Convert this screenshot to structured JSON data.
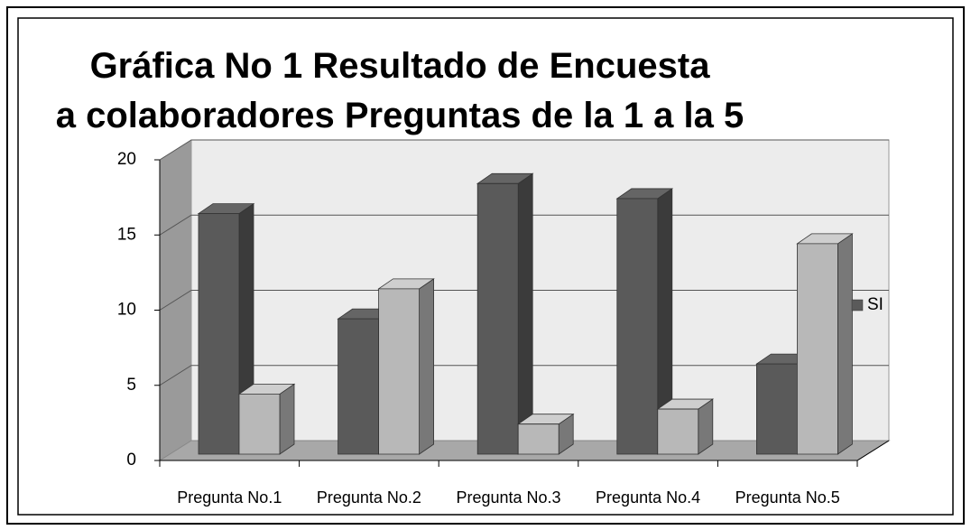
{
  "chart_data": {
    "type": "bar3d",
    "title": "Gráfica No 1 Resultado de Encuesta a colaboradores Preguntas de la 1 a la 5",
    "categories": [
      "Pregunta No.1",
      "Pregunta No.2",
      "Pregunta No.3",
      "Pregunta No.4",
      "Pregunta No.5"
    ],
    "series": [
      {
        "name": "SI",
        "color": "#5a5a5a",
        "values": [
          16,
          9,
          18,
          17,
          6
        ]
      },
      {
        "color": "#b8b8b8",
        "values": [
          4,
          11,
          2,
          3,
          14
        ]
      }
    ],
    "ylim": [
      0,
      20
    ],
    "yticks": [
      0,
      5,
      10,
      15,
      20
    ],
    "grid": true,
    "legend": "right"
  }
}
